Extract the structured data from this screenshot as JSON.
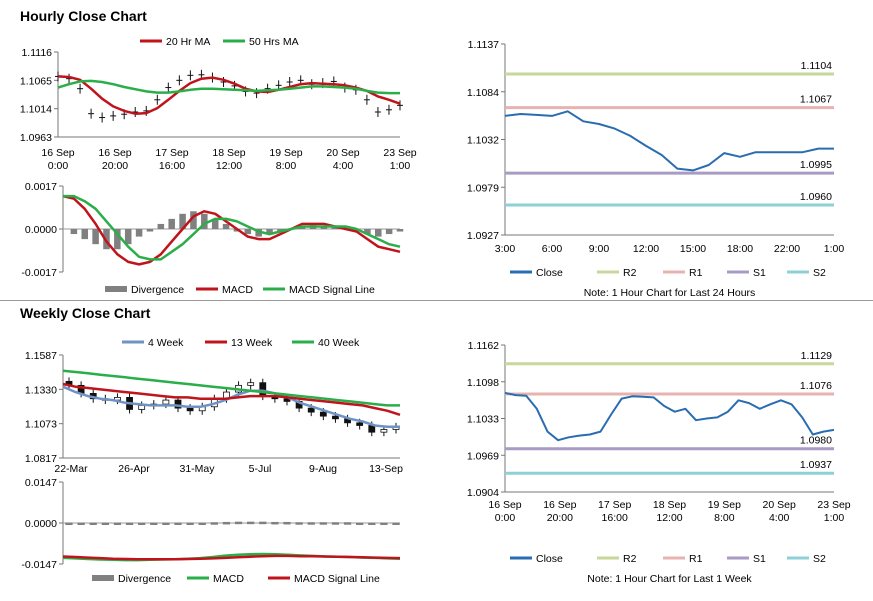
{
  "sections": {
    "hourly_title": "Hourly Close Chart",
    "weekly_title": "Weekly Close Chart"
  },
  "colors": {
    "close": "#2a6cb0",
    "ma_short": "#c0141c",
    "ma_long": "#2aae4a",
    "r2": "#c6d99a",
    "r1": "#e7b3b0",
    "s1": "#a99bc4",
    "s2": "#8fd0d6",
    "divergence": "#808080",
    "week4": "#6f93c4"
  },
  "chart_data": [
    {
      "id": "hourly_price",
      "type": "line",
      "ylim": [
        1.0963,
        1.1116
      ],
      "yticks": [
        "1.1116",
        "1.1065",
        "1.1014",
        "1.0963"
      ],
      "xticks": [
        [
          "16 Sep",
          "0:00"
        ],
        [
          "16 Sep",
          "20:00"
        ],
        [
          "17 Sep",
          "16:00"
        ],
        [
          "18 Sep",
          "12:00"
        ],
        [
          "19 Sep",
          "8:00"
        ],
        [
          "20 Sep",
          "4:00"
        ],
        [
          "23 Sep",
          "1:00"
        ]
      ],
      "legend": [
        "20 Hr MA",
        "50 Hrs MA"
      ],
      "series": [
        {
          "name": "Close",
          "values": [
            1.1072,
            1.1068,
            1.105,
            1.1005,
            1.0998,
            1.1001,
            1.1004,
            1.1008,
            1.101,
            1.103,
            1.1052,
            1.1065,
            1.1074,
            1.1075,
            1.107,
            1.1062,
            1.1055,
            1.1045,
            1.1042,
            1.105,
            1.1056,
            1.1062,
            1.1065,
            1.1058,
            1.106,
            1.1063,
            1.1052,
            1.1048,
            1.103,
            1.1008,
            1.1012,
            1.102
          ]
        },
        {
          "name": "20 Hr MA",
          "values": [
            1.1072,
            1.1071,
            1.1066,
            1.105,
            1.1032,
            1.1018,
            1.101,
            1.1005,
            1.1006,
            1.1015,
            1.103,
            1.1046,
            1.106,
            1.1068,
            1.107,
            1.1066,
            1.1059,
            1.105,
            1.1045,
            1.1044,
            1.1048,
            1.1053,
            1.1058,
            1.106,
            1.1059,
            1.1058,
            1.1056,
            1.1052,
            1.1046,
            1.1036,
            1.103,
            1.1023
          ]
        },
        {
          "name": "50 Hrs MA",
          "values": [
            1.1052,
            1.1058,
            1.1063,
            1.1064,
            1.1062,
            1.1058,
            1.1053,
            1.1049,
            1.1045,
            1.1043,
            1.1043,
            1.1045,
            1.1048,
            1.105,
            1.105,
            1.1049,
            1.1048,
            1.1047,
            1.1046,
            1.1047,
            1.1048,
            1.105,
            1.1052,
            1.1054,
            1.1054,
            1.1053,
            1.1052,
            1.105,
            1.1046,
            1.1043,
            1.1042,
            1.1042
          ]
        }
      ]
    },
    {
      "id": "hourly_macd",
      "type": "bar+line",
      "ylim": [
        -0.0017,
        0.0017
      ],
      "yticks": [
        "0.0017",
        "0.0000",
        "-0.0017"
      ],
      "legend": [
        "Divergence",
        "MACD",
        "MACD Signal Line"
      ],
      "series": [
        {
          "name": "Divergence",
          "values": [
            0.0,
            -0.0002,
            -0.0004,
            -0.0006,
            -0.0008,
            -0.0008,
            -0.0006,
            -0.0003,
            -0.0001,
            0.0002,
            0.0004,
            0.0006,
            0.0007,
            0.0006,
            0.0004,
            0.0002,
            -0.0001,
            -0.0002,
            -0.0003,
            -0.0002,
            -0.0001,
            0.0,
            0.0001,
            0.0002,
            0.0001,
            0.0001,
            0.0,
            -0.0001,
            -0.0002,
            -0.0003,
            -0.0002,
            -0.0001
          ]
        },
        {
          "name": "MACD",
          "values": [
            0.0013,
            0.0012,
            0.0008,
            0.0002,
            -0.0005,
            -0.001,
            -0.0013,
            -0.0014,
            -0.0013,
            -0.001,
            -0.0005,
            0.0,
            0.0005,
            0.0007,
            0.0006,
            0.0003,
            0.0,
            -0.0003,
            -0.0004,
            -0.0004,
            -0.0002,
            0.0,
            0.0002,
            0.0002,
            0.0002,
            0.0001,
            0.0,
            -0.0001,
            -0.0004,
            -0.0007,
            -0.0008,
            -0.0009
          ]
        },
        {
          "name": "MACD Signal Line",
          "values": [
            0.0013,
            0.0013,
            0.0011,
            0.0008,
            0.0003,
            -0.0002,
            -0.0007,
            -0.0011,
            -0.0012,
            -0.0012,
            -0.0009,
            -0.0006,
            -0.0002,
            0.0002,
            0.0004,
            0.0004,
            0.0003,
            0.0001,
            -0.0001,
            -0.0002,
            -0.0001,
            0.0,
            0.0001,
            0.0001,
            0.0001,
            0.0001,
            0.0001,
            0.0,
            -0.0002,
            -0.0004,
            -0.0006,
            -0.0007
          ]
        }
      ]
    },
    {
      "id": "last24",
      "type": "line",
      "ylim": [
        1.0927,
        1.1137
      ],
      "yticks": [
        "1.1137",
        "1.1084",
        "1.1032",
        "1.0979",
        "1.0927"
      ],
      "xticks": [
        "3:00",
        "6:00",
        "9:00",
        "12:00",
        "15:00",
        "18:00",
        "22:00",
        "1:00"
      ],
      "levels": [
        {
          "name": "R2",
          "value": 1.1104
        },
        {
          "name": "R1",
          "value": 1.1067
        },
        {
          "name": "S1",
          "value": 1.0995
        },
        {
          "name": "S2",
          "value": 1.096
        }
      ],
      "level_labels": [
        "1.1104",
        "1.1067",
        "1.0995",
        "1.0960"
      ],
      "legend": [
        "Close",
        "R2",
        "R1",
        "S1",
        "S2"
      ],
      "note": "Note: 1 Hour Chart for Last 24 Hours",
      "series": [
        {
          "name": "Close",
          "values": [
            1.1058,
            1.106,
            1.1059,
            1.1058,
            1.1063,
            1.1052,
            1.1049,
            1.1044,
            1.1036,
            1.1025,
            1.1015,
            1.1,
            1.0998,
            1.1004,
            1.1017,
            1.1013,
            1.1018,
            1.1018,
            1.1018,
            1.1018,
            1.1022,
            1.1022
          ]
        }
      ]
    },
    {
      "id": "weekly_price",
      "type": "candlestick",
      "ylim": [
        1.0817,
        1.1587
      ],
      "yticks": [
        "1.1587",
        "1.1330",
        "1.1073",
        "1.0817"
      ],
      "xticks": [
        "22-Mar",
        "26-Apr",
        "31-May",
        "5-Jul",
        "9-Aug",
        "13-Sep"
      ],
      "legend": [
        "4 Week",
        "13 Week",
        "40 Week"
      ],
      "series": [
        {
          "name": "Close",
          "values": [
            1.136,
            1.13,
            1.126,
            1.125,
            1.127,
            1.118,
            1.121,
            1.122,
            1.125,
            1.119,
            1.117,
            1.12,
            1.126,
            1.131,
            1.136,
            1.138,
            1.128,
            1.126,
            1.124,
            1.119,
            1.116,
            1.113,
            1.111,
            1.108,
            1.106,
            1.101,
            1.103,
            1.105
          ]
        },
        {
          "name": "4 Week",
          "values": [
            1.135,
            1.131,
            1.128,
            1.126,
            1.125,
            1.123,
            1.122,
            1.121,
            1.121,
            1.121,
            1.12,
            1.12,
            1.122,
            1.125,
            1.129,
            1.132,
            1.132,
            1.13,
            1.127,
            1.123,
            1.12,
            1.117,
            1.114,
            1.111,
            1.109,
            1.106,
            1.105,
            1.105
          ]
        },
        {
          "name": "13 Week",
          "values": [
            1.137,
            1.135,
            1.134,
            1.133,
            1.132,
            1.131,
            1.13,
            1.129,
            1.128,
            1.127,
            1.127,
            1.126,
            1.126,
            1.126,
            1.127,
            1.128,
            1.128,
            1.128,
            1.127,
            1.126,
            1.125,
            1.124,
            1.123,
            1.122,
            1.121,
            1.119,
            1.117,
            1.114
          ]
        },
        {
          "name": "40 Week",
          "values": [
            1.147,
            1.146,
            1.145,
            1.144,
            1.143,
            1.142,
            1.141,
            1.14,
            1.139,
            1.138,
            1.137,
            1.136,
            1.135,
            1.134,
            1.133,
            1.132,
            1.131,
            1.13,
            1.129,
            1.128,
            1.127,
            1.126,
            1.125,
            1.124,
            1.123,
            1.122,
            1.121,
            1.121
          ]
        }
      ]
    },
    {
      "id": "weekly_macd",
      "type": "bar+line",
      "ylim": [
        -0.0147,
        0.0147
      ],
      "yticks": [
        "0.0147",
        "0.0000",
        "-0.0147"
      ],
      "legend": [
        "Divergence",
        "MACD",
        "MACD Signal Line"
      ],
      "series": [
        {
          "name": "Divergence",
          "values": [
            -0.0005,
            -0.0005,
            -0.0004,
            -0.0004,
            -0.0004,
            -0.0004,
            -0.0003,
            -0.0003,
            -0.0003,
            -0.0002,
            -0.0002,
            -0.0001,
            0.0001,
            0.0002,
            0.0003,
            0.0003,
            0.0003,
            0.0002,
            0.0002,
            0.0001,
            0.0001,
            0.0001,
            0.0001,
            0.0001,
            -0.0001,
            -0.0001,
            -0.0002,
            -0.0002
          ]
        },
        {
          "name": "MACD",
          "values": [
            -0.0125,
            -0.0127,
            -0.0129,
            -0.0131,
            -0.0132,
            -0.0133,
            -0.0133,
            -0.0132,
            -0.0131,
            -0.013,
            -0.0128,
            -0.0126,
            -0.0122,
            -0.0117,
            -0.0114,
            -0.0112,
            -0.0111,
            -0.0112,
            -0.0114,
            -0.0116,
            -0.0118,
            -0.012,
            -0.0121,
            -0.0122,
            -0.0124,
            -0.0125,
            -0.0127,
            -0.0128
          ]
        },
        {
          "name": "MACD Signal Line",
          "values": [
            -0.012,
            -0.0122,
            -0.0124,
            -0.0126,
            -0.0128,
            -0.0129,
            -0.013,
            -0.013,
            -0.013,
            -0.013,
            -0.0129,
            -0.0128,
            -0.0127,
            -0.0125,
            -0.0123,
            -0.0121,
            -0.0119,
            -0.0118,
            -0.0118,
            -0.0119,
            -0.0119,
            -0.012,
            -0.0121,
            -0.0122,
            -0.0123,
            -0.0124,
            -0.0125,
            -0.0126
          ]
        }
      ]
    },
    {
      "id": "last_week",
      "type": "line",
      "ylim": [
        1.0904,
        1.1162
      ],
      "yticks": [
        "1.1162",
        "1.1098",
        "1.1033",
        "1.0969",
        "1.0904"
      ],
      "xticks": [
        [
          "16 Sep",
          "0:00"
        ],
        [
          "16 Sep",
          "20:00"
        ],
        [
          "17 Sep",
          "16:00"
        ],
        [
          "18 Sep",
          "12:00"
        ],
        [
          "19 Sep",
          "8:00"
        ],
        [
          "20 Sep",
          "4:00"
        ],
        [
          "23 Sep",
          "1:00"
        ]
      ],
      "levels": [
        {
          "name": "R2",
          "value": 1.1129
        },
        {
          "name": "R1",
          "value": 1.1076
        },
        {
          "name": "S1",
          "value": 1.098
        },
        {
          "name": "S2",
          "value": 1.0937
        }
      ],
      "level_labels": [
        "1.1129",
        "1.1076",
        "1.0980",
        "1.0937"
      ],
      "legend": [
        "Close",
        "R2",
        "R1",
        "S1",
        "S2"
      ],
      "note": "Note: 1 Hour Chart for Last 1 Week",
      "series": [
        {
          "name": "Close",
          "values": [
            1.1078,
            1.1074,
            1.1073,
            1.105,
            1.101,
            1.0995,
            1.1,
            1.1003,
            1.1005,
            1.101,
            1.104,
            1.1068,
            1.1072,
            1.1071,
            1.107,
            1.1055,
            1.1045,
            1.105,
            1.103,
            1.1033,
            1.1035,
            1.1045,
            1.1065,
            1.106,
            1.105,
            1.1058,
            1.1065,
            1.1058,
            1.1035,
            1.1005,
            1.101,
            1.1013
          ]
        }
      ]
    }
  ]
}
